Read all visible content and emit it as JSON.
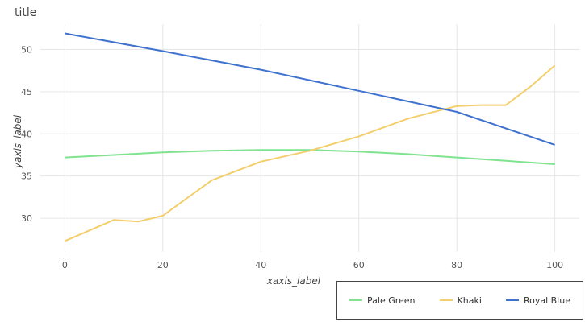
{
  "chart_data": {
    "type": "line",
    "title": "title",
    "xlabel": "xaxis_label",
    "ylabel": "yaxis_label",
    "xlim": [
      -5,
      105
    ],
    "ylim": [
      26,
      53
    ],
    "x_ticks": [
      0,
      20,
      40,
      60,
      80,
      100
    ],
    "y_ticks": [
      30,
      35,
      40,
      45,
      50
    ],
    "grid": true,
    "legend_position": "bottom-right",
    "series": [
      {
        "name": "Pale Green",
        "color": "#7fe38f",
        "x": [
          0,
          10,
          20,
          30,
          40,
          50,
          60,
          70,
          80,
          90,
          100
        ],
        "values": [
          37.2,
          37.5,
          37.8,
          38.0,
          38.1,
          38.1,
          37.9,
          37.6,
          37.2,
          36.8,
          36.4
        ]
      },
      {
        "name": "Khaki",
        "color": "#f3cf6c",
        "x": [
          0,
          10,
          15,
          20,
          30,
          40,
          50,
          60,
          70,
          80,
          85,
          90,
          95,
          100
        ],
        "values": [
          27.3,
          29.8,
          29.6,
          30.3,
          34.5,
          36.7,
          38.0,
          39.7,
          41.8,
          43.3,
          43.4,
          43.4,
          45.6,
          48.1
        ]
      },
      {
        "name": "Royal Blue",
        "color": "#3f72cf",
        "x": [
          0,
          20,
          40,
          60,
          80,
          100
        ],
        "values": [
          51.9,
          49.8,
          47.6,
          45.1,
          42.6,
          38.7
        ]
      }
    ]
  }
}
